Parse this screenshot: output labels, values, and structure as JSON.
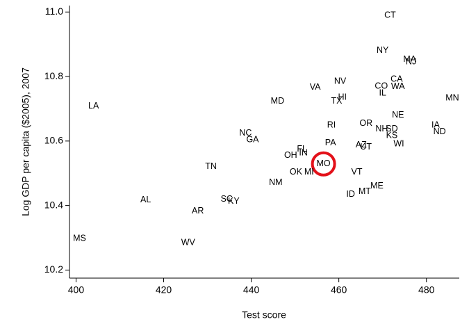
{
  "chart_data": {
    "type": "scatter",
    "x_label": "Test score",
    "y_label": "Log GDP per capita ($2005), 2007",
    "xlim": [
      398.5,
      487.5
    ],
    "xticks": [
      400,
      420,
      440,
      460,
      480
    ],
    "ylim": [
      10.175,
      11.02
    ],
    "yticks": [
      {
        "value": 11,
        "label": "11.0"
      },
      10.8,
      10.6,
      10.4,
      10.2
    ],
    "highlighted": "MO",
    "highlight_color": "#e3111a",
    "labels": [
      "CT",
      "NY",
      "MA",
      "NJ",
      "CA",
      "CO",
      "WA",
      "IL",
      "NV",
      "VA",
      "HI",
      "TX",
      "MD",
      "MN",
      "LA",
      "NE",
      "RI",
      "OR",
      "NH",
      "SD",
      "IA",
      "ND",
      "KS",
      "NC",
      "GA",
      "WI",
      "PA",
      "AZ",
      "UT",
      "FL",
      "IN",
      "OH",
      "MO",
      "TN",
      "OK",
      "MI",
      "VT",
      "NM",
      "ME",
      "MT",
      "ID",
      "AL",
      "SC",
      "KY",
      "AR",
      "MS",
      "WV"
    ],
    "x": [
      471.7,
      470.0,
      476.2,
      476.5,
      473.2,
      469.7,
      473.5,
      470.0,
      460.3,
      454.6,
      460.8,
      459.5,
      446.0,
      485.9,
      404.0,
      473.5,
      458.3,
      466.2,
      469.8,
      472.1,
      482.1,
      483.0,
      472.1,
      438.7,
      440.3,
      473.7,
      458.1,
      465.1,
      466.2,
      451.6,
      451.9,
      449.0,
      456.5,
      430.8,
      450.2,
      453.2,
      464.1,
      445.6,
      468.7,
      465.9,
      462.7,
      415.9,
      434.4,
      436.0,
      427.8,
      400.8,
      425.6
    ],
    "y": [
      10.989,
      10.88,
      10.852,
      10.845,
      10.791,
      10.77,
      10.768,
      10.748,
      10.785,
      10.766,
      10.735,
      10.723,
      10.723,
      10.733,
      10.708,
      10.68,
      10.649,
      10.654,
      10.637,
      10.637,
      10.649,
      10.628,
      10.617,
      10.624,
      10.604,
      10.591,
      10.594,
      10.587,
      10.581,
      10.574,
      10.563,
      10.555,
      10.529,
      10.52,
      10.503,
      10.503,
      10.503,
      10.471,
      10.46,
      10.443,
      10.434,
      10.417,
      10.419,
      10.413,
      10.383,
      10.297,
      10.284
    ]
  }
}
